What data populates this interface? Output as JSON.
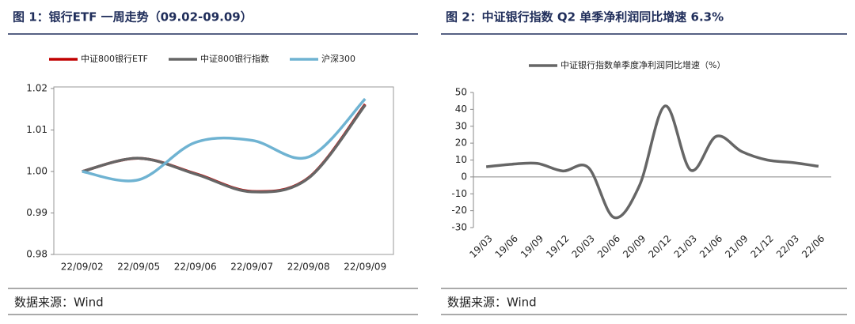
{
  "chart_data": [
    {
      "type": "line",
      "title": "图 1：银行ETF 一周走势（09.02-09.09）",
      "source": "数据来源：Wind",
      "categories": [
        "22/09/02",
        "22/09/05",
        "22/09/06",
        "22/09/07",
        "22/09/08",
        "22/09/09"
      ],
      "series": [
        {
          "name": "中证800银行ETF",
          "color": "#c00000",
          "values": [
            1.0,
            1.0032,
            0.9995,
            0.9952,
            0.9985,
            1.0162
          ]
        },
        {
          "name": "中证800银行指数",
          "color": "#666666",
          "values": [
            1.0,
            1.0032,
            0.9994,
            0.9951,
            0.9984,
            1.016
          ]
        },
        {
          "name": "沪深300",
          "color": "#6fb3d2",
          "values": [
            1.0,
            0.998,
            1.007,
            1.0075,
            1.0035,
            1.0175
          ]
        }
      ],
      "ylim": [
        0.98,
        1.02
      ],
      "yticks": [
        0.98,
        0.99,
        {
          "value": 1.0,
          "label": "1.00"
        },
        1.01,
        1.02
      ],
      "legend": "top",
      "smooth": true
    },
    {
      "type": "line",
      "title": "图 2：中证银行指数 Q2 单季净利润同比增速 6.3%",
      "source": "数据来源：Wind",
      "categories": [
        "19/03",
        "19/06",
        "19/09",
        "19/12",
        "20/03",
        "20/06",
        "20/09",
        "20/12",
        "21/03",
        "21/06",
        "21/09",
        "21/12",
        "22/03",
        "22/06"
      ],
      "series": [
        {
          "name": "中证银行指数单季度净利润同比增速（%）",
          "color": "#666666",
          "values": [
            6,
            7.5,
            8,
            3.5,
            5.5,
            -24,
            -5,
            42,
            4,
            24,
            15,
            10,
            8.5,
            6.3
          ]
        }
      ],
      "ylim": [
        -30,
        50
      ],
      "yticks": [
        -30,
        -20,
        -10,
        0,
        10,
        20,
        30,
        40,
        50
      ],
      "legend": "top",
      "smooth": true
    }
  ]
}
